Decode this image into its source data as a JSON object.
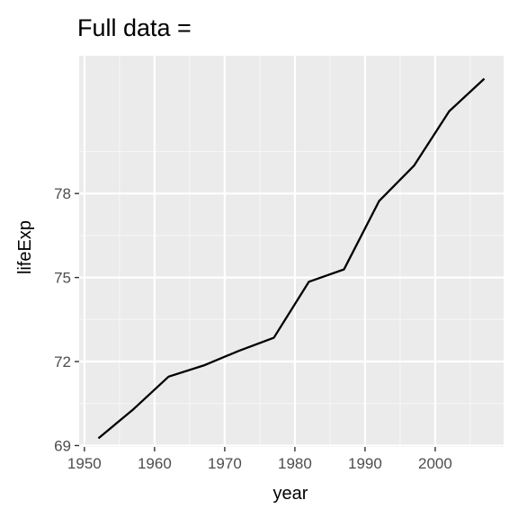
{
  "chart_data": {
    "type": "line",
    "title": "Full data =",
    "xlabel": "year",
    "ylabel": "lifeExp",
    "x": [
      1952,
      1957,
      1962,
      1967,
      1972,
      1977,
      1982,
      1987,
      1992,
      1997,
      2002,
      2007
    ],
    "series": [
      {
        "values": [
          69.26,
          70.3,
          71.46,
          71.86,
          72.38,
          72.85,
          74.85,
          75.29,
          77.73,
          79.0,
          80.94,
          82.1
        ]
      }
    ],
    "xlim": [
      1949.25,
      2009.75
    ],
    "ylim": [
      68.95,
      82.92
    ],
    "x_ticks": [
      1950,
      1960,
      1970,
      1980,
      1990,
      2000
    ],
    "x_tick_labels": [
      "1950",
      "1960",
      "1970",
      "1980",
      "1990",
      "2000"
    ],
    "y_ticks": [
      69,
      72,
      75,
      78
    ],
    "y_tick_labels": [
      "69",
      "72",
      "75",
      "78"
    ],
    "grid": true,
    "legend": "none",
    "colors": {
      "panel_background": "#ebebeb",
      "grid_major": "#ffffff",
      "grid_minor": "#f5f5f5",
      "line": "#000000",
      "tick_mark": "#333333",
      "tick_label": "#4d4d4d"
    }
  }
}
